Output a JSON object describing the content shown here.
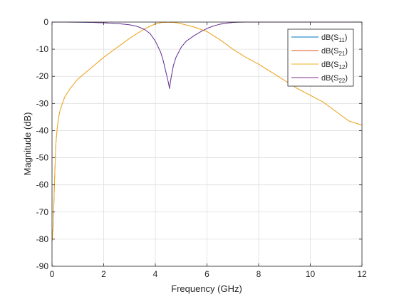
{
  "chart_data": {
    "type": "line",
    "title": "",
    "xlabel": "Frequency (GHz)",
    "ylabel": "Magnitude (dB)",
    "xlim": [
      0,
      12
    ],
    "ylim": [
      -90,
      0
    ],
    "xticks": [
      0,
      2,
      4,
      6,
      8,
      10,
      12
    ],
    "xtick_labels": [
      "0",
      "2",
      "4",
      "6",
      "8",
      "10",
      "12"
    ],
    "yticks": [
      0,
      -10,
      -20,
      -30,
      -40,
      -50,
      -60,
      -70,
      -80,
      -90
    ],
    "ytick_labels": [
      "0",
      "-10",
      "-20",
      "-30",
      "-40",
      "-50",
      "-60",
      "-70",
      "-80",
      "-90"
    ],
    "grid": true,
    "legend_position": "top-right",
    "series": [
      {
        "name": "dB(S11)",
        "legend_base": "dB(S",
        "legend_sub": "11",
        "legend_end": ")",
        "color": "#0072BD",
        "x": [
          0,
          0.5,
          1,
          1.5,
          2,
          2.5,
          3,
          3.3,
          3.6,
          3.8,
          4,
          4.2,
          4.3,
          4.4,
          4.5,
          4.55,
          4.6,
          4.7,
          4.8,
          5,
          5.2,
          5.5,
          5.8,
          6,
          6.2,
          6.5,
          6.8,
          7,
          7.2,
          7.5,
          8,
          9,
          10,
          11,
          12
        ],
        "y": [
          0,
          0,
          -0.05,
          -0.1,
          -0.3,
          -0.5,
          -1,
          -1.6,
          -2.8,
          -4.3,
          -7,
          -11,
          -14,
          -18,
          -22,
          -24.5,
          -21,
          -16,
          -13,
          -9.3,
          -7,
          -5,
          -3.3,
          -2.4,
          -1.6,
          -0.8,
          -0.35,
          -0.15,
          -0.05,
          0,
          0,
          0,
          0,
          0,
          0
        ]
      },
      {
        "name": "dB(S21)",
        "legend_base": "dB(S",
        "legend_sub": "21",
        "legend_end": ")",
        "color": "#D95319",
        "x": [
          0,
          0.05,
          0.1,
          0.15,
          0.2,
          0.25,
          0.3,
          0.4,
          0.5,
          0.7,
          1,
          1.5,
          2,
          2.5,
          3,
          3.5,
          3.8,
          4,
          4.2,
          4.5,
          4.8,
          5,
          5.5,
          6,
          6.5,
          7,
          7.5,
          8,
          8.5,
          9,
          9.5,
          10,
          10.5,
          11,
          11.5,
          12
        ],
        "y": [
          -81,
          -75,
          -58,
          -45,
          -39,
          -35.5,
          -33,
          -30,
          -27.5,
          -24.5,
          -21,
          -17,
          -13,
          -9.5,
          -6,
          -3,
          -1.5,
          -0.7,
          -0.2,
          0,
          -0.2,
          -0.6,
          -1.8,
          -3.5,
          -6.5,
          -10,
          -13,
          -15.5,
          -18.5,
          -21.5,
          -24.5,
          -27,
          -29.5,
          -33,
          -36.5,
          -38
        ]
      },
      {
        "name": "dB(S12)",
        "legend_base": "dB(S",
        "legend_sub": "12",
        "legend_end": ")",
        "color": "#EDB120",
        "x": [
          0,
          0.05,
          0.1,
          0.15,
          0.2,
          0.25,
          0.3,
          0.4,
          0.5,
          0.7,
          1,
          1.5,
          2,
          2.5,
          3,
          3.5,
          3.8,
          4,
          4.2,
          4.5,
          4.8,
          5,
          5.5,
          6,
          6.5,
          7,
          7.5,
          8,
          8.5,
          9,
          9.5,
          10,
          10.5,
          11,
          11.5,
          12
        ],
        "y": [
          -81,
          -75,
          -58,
          -45,
          -39,
          -35.5,
          -33,
          -30,
          -27.5,
          -24.5,
          -21,
          -17,
          -13,
          -9.5,
          -6,
          -3,
          -1.5,
          -0.7,
          -0.2,
          0,
          -0.2,
          -0.6,
          -1.8,
          -3.5,
          -6.5,
          -10,
          -13,
          -15.5,
          -18.5,
          -21.5,
          -24.5,
          -27,
          -29.5,
          -33,
          -36.5,
          -38
        ]
      },
      {
        "name": "dB(S22)",
        "legend_base": "dB(S",
        "legend_sub": "22",
        "legend_end": ")",
        "color": "#7E2F8E",
        "x": [
          0,
          0.5,
          1,
          1.5,
          2,
          2.5,
          3,
          3.3,
          3.6,
          3.8,
          4,
          4.2,
          4.3,
          4.4,
          4.5,
          4.55,
          4.6,
          4.7,
          4.8,
          5,
          5.2,
          5.5,
          5.8,
          6,
          6.2,
          6.5,
          6.8,
          7,
          7.2,
          7.5,
          8,
          9,
          10,
          11,
          12
        ],
        "y": [
          0,
          0,
          -0.05,
          -0.1,
          -0.3,
          -0.5,
          -1,
          -1.6,
          -2.8,
          -4.3,
          -7,
          -11,
          -14,
          -18,
          -22,
          -24.5,
          -21,
          -16,
          -13,
          -9.3,
          -7,
          -5,
          -3.3,
          -2.4,
          -1.6,
          -0.8,
          -0.35,
          -0.15,
          -0.05,
          0,
          0,
          0,
          0,
          0,
          0
        ]
      }
    ]
  }
}
